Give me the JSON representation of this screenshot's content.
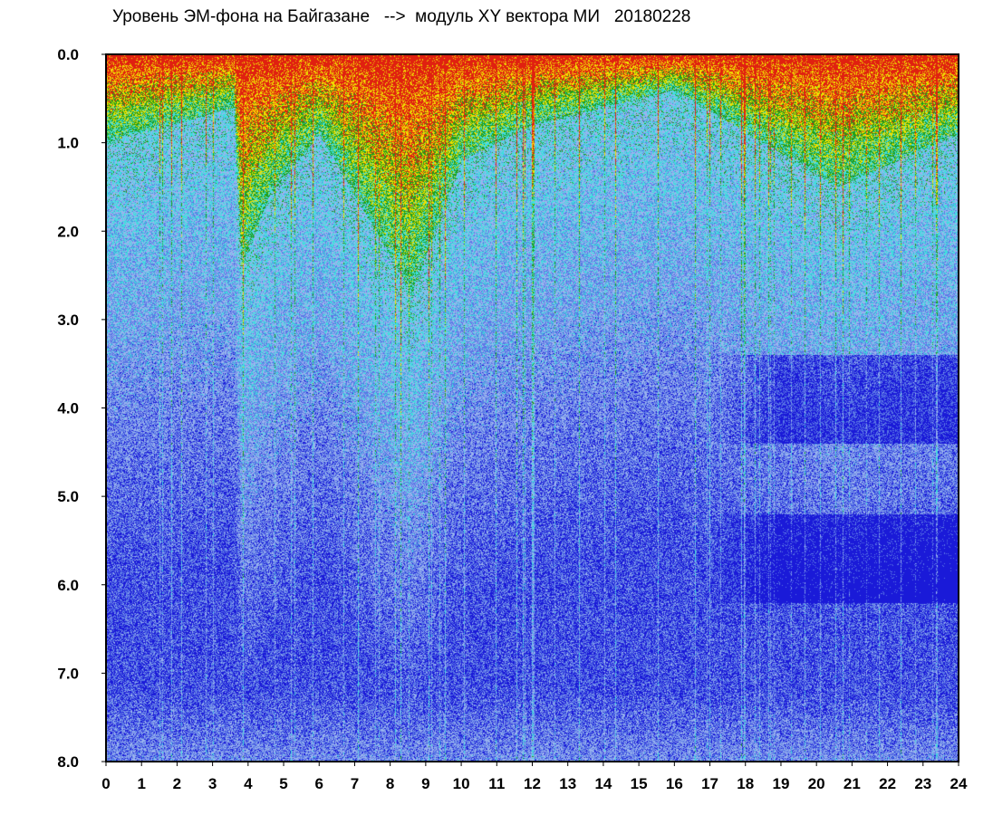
{
  "chart_data": {
    "type": "heatmap",
    "title": "Уровень ЭМ-фона на Байгазане   -->  модуль XY вектора МИ   20180228",
    "xlabel": "",
    "ylabel": "",
    "x_ticks": [
      "0",
      "1",
      "2",
      "3",
      "4",
      "5",
      "6",
      "7",
      "8",
      "9",
      "10",
      "11",
      "12",
      "13",
      "14",
      "15",
      "16",
      "17",
      "18",
      "19",
      "20",
      "21",
      "22",
      "23",
      "24"
    ],
    "y_ticks": [
      "0.0",
      "1.0",
      "2.0",
      "3.0",
      "4.0",
      "5.0",
      "6.0",
      "7.0",
      "8.0"
    ],
    "xlim": [
      0,
      24
    ],
    "ylim": [
      0,
      8
    ],
    "y_axis_inverted": true,
    "colorscale": [
      "#1a1ad8",
      "#5a78e6",
      "#9ab4ee",
      "#3fdede",
      "#1e9e1e",
      "#f0e000",
      "#e02010"
    ],
    "description_levels": {
      "saturation_top_fraction": [
        {
          "hour": 0,
          "depth": 1.0
        },
        {
          "hour": 3.6,
          "depth": 0.6
        },
        {
          "hour": 3.8,
          "depth": 2.4
        },
        {
          "hour": 4.6,
          "depth": 1.6
        },
        {
          "hour": 6,
          "depth": 0.9
        },
        {
          "hour": 8.6,
          "depth": 2.7
        },
        {
          "hour": 10,
          "depth": 1.2
        },
        {
          "hour": 12,
          "depth": 0.8
        },
        {
          "hour": 14,
          "depth": 0.6
        },
        {
          "hour": 16,
          "depth": 0.4
        },
        {
          "hour": 20.6,
          "depth": 1.5
        },
        {
          "hour": 24,
          "depth": 0.9
        }
      ],
      "low_bands": [
        {
          "hour_from": 17,
          "hour_to": 24,
          "depth_from": 3.4,
          "depth_to": 4.4
        },
        {
          "hour_from": 17,
          "hour_to": 24,
          "depth_from": 5.2,
          "depth_to": 6.2
        }
      ]
    }
  }
}
